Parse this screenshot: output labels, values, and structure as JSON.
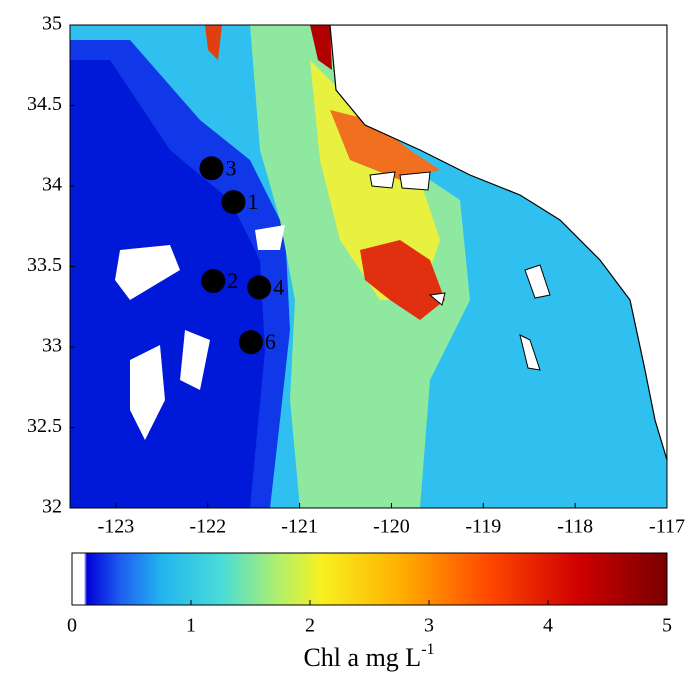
{
  "map": {
    "xlim": [
      -123.5,
      -117
    ],
    "ylim": [
      32,
      35
    ],
    "xticks": [
      -123,
      -122,
      -121,
      -120,
      -119,
      -118,
      -117
    ],
    "yticks": [
      32,
      32.5,
      33,
      33.5,
      34,
      34.5,
      35
    ],
    "stations": [
      {
        "label": "3",
        "lon": -121.96,
        "lat": 34.11
      },
      {
        "label": "1",
        "lon": -121.72,
        "lat": 33.9
      },
      {
        "label": "2",
        "lon": -121.94,
        "lat": 33.41
      },
      {
        "label": "4",
        "lon": -121.44,
        "lat": 33.37
      },
      {
        "label": "6",
        "lon": -121.53,
        "lat": 33.03
      }
    ]
  },
  "colorbar": {
    "lim": [
      0,
      5
    ],
    "ticks": [
      0,
      1,
      2,
      3,
      4,
      5
    ],
    "label": "Chl a mg L",
    "label_superscript": "-1"
  }
}
